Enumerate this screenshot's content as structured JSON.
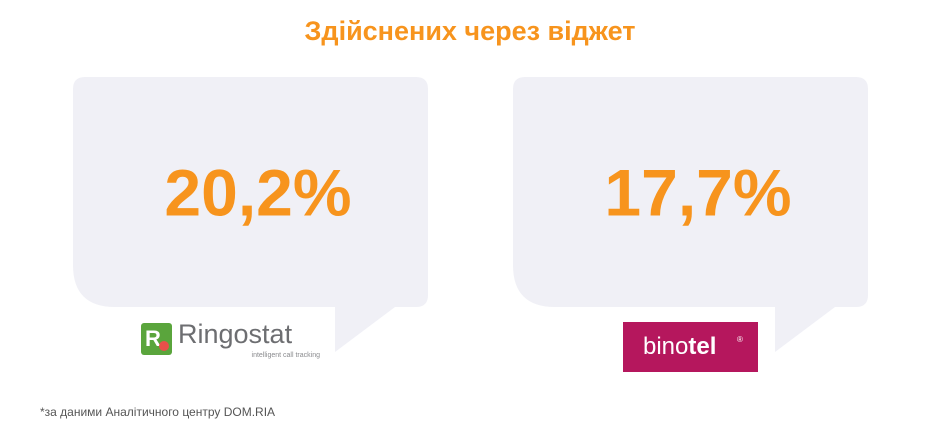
{
  "title": "Здійснених через віджет",
  "cards": [
    {
      "value": "20,2%",
      "logo": {
        "name": "Ringostat",
        "tagline": "intelligent call tracking"
      }
    },
    {
      "value": "17,7%",
      "logo": {
        "name_parts": [
          "bino",
          "tel"
        ],
        "mark": "®"
      }
    }
  ],
  "footnote": "*за даними Аналітичного центру DOM.RIA"
}
